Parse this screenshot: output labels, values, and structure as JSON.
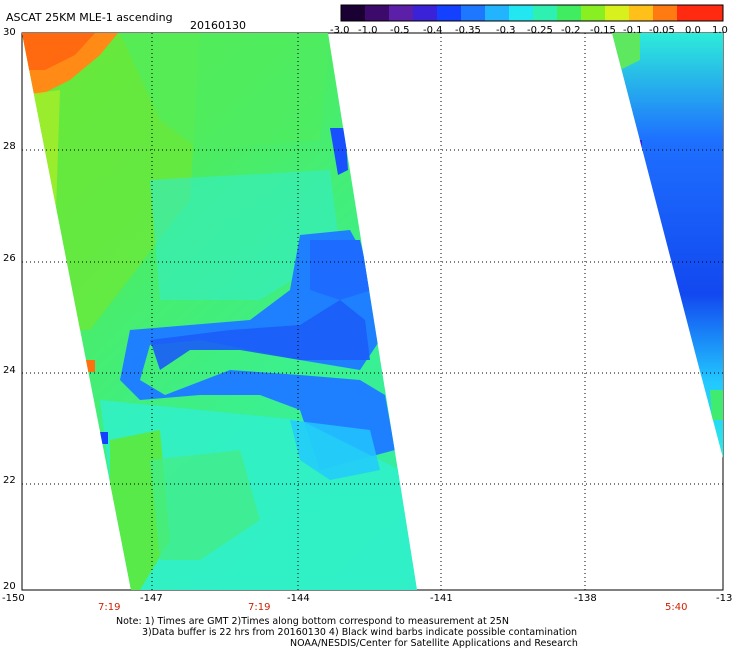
{
  "title": "ASCAT 25KM MLE-1 ascending",
  "date": "20160130",
  "colorbar": {
    "tick_labels": [
      "-3.0",
      "-1.0",
      "-0.5",
      "-0.4",
      "-0.35",
      "-0.3",
      "-0.25",
      "-0.2",
      "-0.15",
      "-0.1",
      "-0.05",
      "0.0",
      "1.0"
    ],
    "colors": [
      "#1a0033",
      "#3b0a6b",
      "#5b1fa8",
      "#3a22d9",
      "#1440ff",
      "#1e78ff",
      "#22b4ff",
      "#22e6f0",
      "#2ef0b0",
      "#40ec60",
      "#88ef22",
      "#d8f01c",
      "#ffc01a",
      "#ff7a10",
      "#ff2a10"
    ]
  },
  "lat_labels": [
    "30",
    "28",
    "26",
    "24",
    "22",
    "20"
  ],
  "lon_labels": [
    "-150",
    "-147",
    "-144",
    "-141",
    "-138",
    "-13"
  ],
  "time_labels": [
    "7:19",
    "7:19",
    "5:40"
  ],
  "notes": [
    "Note: 1) Times are GMT 2)Times along bottom correspond to measurement at 25N",
    "3)Data buffer is 22 hrs from 20160130 4) Black wind barbs indicate possible contamination",
    "NOAA/NESDIS/Center for Satellite Applications and Research"
  ],
  "map": {
    "lat_range": [
      20,
      30
    ],
    "lon_range": [
      -150,
      -135
    ],
    "swaths": [
      "west",
      "east"
    ]
  }
}
